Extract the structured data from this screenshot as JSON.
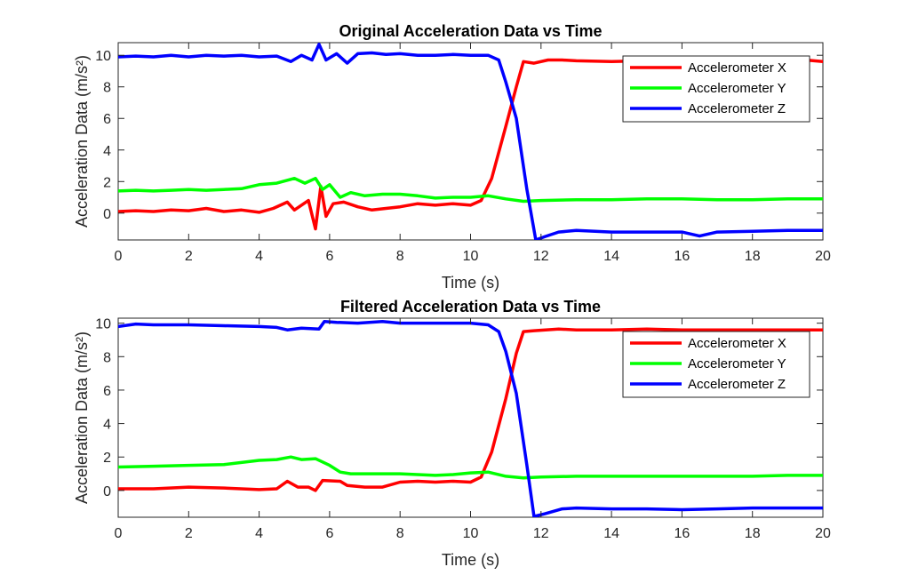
{
  "chart_data": [
    {
      "type": "line",
      "title": "Original Acceleration Data vs Time",
      "xlabel": "Time (s)",
      "ylabel": "Acceleration Data (m/s²)",
      "xlim": [
        0,
        20
      ],
      "ylim": [
        -1.7,
        10.8
      ],
      "x_ticks": [
        0,
        2,
        4,
        6,
        8,
        10,
        12,
        14,
        16,
        18,
        20
      ],
      "y_ticks": [
        0,
        2,
        4,
        6,
        8,
        10
      ],
      "legend_position": "top-right",
      "grid": false,
      "series": [
        {
          "name": "Accelerometer X",
          "color": "#ff0000",
          "points": [
            [
              0,
              0.1
            ],
            [
              0.5,
              0.15
            ],
            [
              1,
              0.1
            ],
            [
              1.5,
              0.2
            ],
            [
              2,
              0.15
            ],
            [
              2.5,
              0.3
            ],
            [
              3,
              0.1
            ],
            [
              3.5,
              0.2
            ],
            [
              4,
              0.05
            ],
            [
              4.4,
              0.3
            ],
            [
              4.8,
              0.7
            ],
            [
              5.0,
              0.2
            ],
            [
              5.4,
              0.8
            ],
            [
              5.6,
              -1.0
            ],
            [
              5.75,
              1.7
            ],
            [
              5.9,
              -0.2
            ],
            [
              6.1,
              0.6
            ],
            [
              6.4,
              0.7
            ],
            [
              6.8,
              0.4
            ],
            [
              7.2,
              0.2
            ],
            [
              7.6,
              0.3
            ],
            [
              8,
              0.4
            ],
            [
              8.5,
              0.6
            ],
            [
              9,
              0.5
            ],
            [
              9.5,
              0.6
            ],
            [
              10,
              0.5
            ],
            [
              10.3,
              0.8
            ],
            [
              10.6,
              2.2
            ],
            [
              11.0,
              5.5
            ],
            [
              11.3,
              8.0
            ],
            [
              11.5,
              9.6
            ],
            [
              11.8,
              9.5
            ],
            [
              12.2,
              9.7
            ],
            [
              12.6,
              9.7
            ],
            [
              13,
              9.65
            ],
            [
              14,
              9.6
            ],
            [
              15,
              9.65
            ],
            [
              16,
              9.6
            ],
            [
              17,
              9.65
            ],
            [
              18,
              9.65
            ],
            [
              19,
              9.6
            ],
            [
              19.5,
              9.7
            ],
            [
              20,
              9.6
            ]
          ]
        },
        {
          "name": "Accelerometer Y",
          "color": "#00ff00",
          "points": [
            [
              0,
              1.4
            ],
            [
              0.5,
              1.45
            ],
            [
              1,
              1.4
            ],
            [
              1.5,
              1.45
            ],
            [
              2,
              1.5
            ],
            [
              2.5,
              1.45
            ],
            [
              3,
              1.5
            ],
            [
              3.5,
              1.55
            ],
            [
              4,
              1.8
            ],
            [
              4.5,
              1.9
            ],
            [
              5.0,
              2.2
            ],
            [
              5.3,
              1.9
            ],
            [
              5.6,
              2.2
            ],
            [
              5.8,
              1.5
            ],
            [
              6.0,
              1.8
            ],
            [
              6.3,
              1.0
            ],
            [
              6.6,
              1.3
            ],
            [
              7.0,
              1.1
            ],
            [
              7.5,
              1.2
            ],
            [
              8,
              1.2
            ],
            [
              8.5,
              1.1
            ],
            [
              9,
              0.95
            ],
            [
              9.5,
              1.0
            ],
            [
              10,
              1.0
            ],
            [
              10.5,
              1.1
            ],
            [
              11,
              0.9
            ],
            [
              11.5,
              0.75
            ],
            [
              12,
              0.8
            ],
            [
              13,
              0.85
            ],
            [
              14,
              0.85
            ],
            [
              15,
              0.9
            ],
            [
              16,
              0.9
            ],
            [
              17,
              0.85
            ],
            [
              18,
              0.85
            ],
            [
              19,
              0.9
            ],
            [
              20,
              0.9
            ]
          ]
        },
        {
          "name": "Accelerometer Z",
          "color": "#0000ff",
          "points": [
            [
              0,
              9.9
            ],
            [
              0.5,
              9.95
            ],
            [
              1,
              9.9
            ],
            [
              1.5,
              10.0
            ],
            [
              2,
              9.9
            ],
            [
              2.5,
              10.0
            ],
            [
              3,
              9.95
            ],
            [
              3.5,
              10.0
            ],
            [
              4,
              9.9
            ],
            [
              4.5,
              9.95
            ],
            [
              4.9,
              9.6
            ],
            [
              5.2,
              10.0
            ],
            [
              5.5,
              9.7
            ],
            [
              5.7,
              10.7
            ],
            [
              5.9,
              9.7
            ],
            [
              6.2,
              10.1
            ],
            [
              6.5,
              9.5
            ],
            [
              6.8,
              10.1
            ],
            [
              7.2,
              10.15
            ],
            [
              7.6,
              10.05
            ],
            [
              8,
              10.1
            ],
            [
              8.5,
              10.0
            ],
            [
              9,
              10.0
            ],
            [
              9.5,
              10.05
            ],
            [
              10,
              10.0
            ],
            [
              10.5,
              10.0
            ],
            [
              10.8,
              9.7
            ],
            [
              11.0,
              8.3
            ],
            [
              11.3,
              6.0
            ],
            [
              11.6,
              1.5
            ],
            [
              11.85,
              -1.7
            ],
            [
              12.1,
              -1.5
            ],
            [
              12.5,
              -1.2
            ],
            [
              13,
              -1.1
            ],
            [
              14,
              -1.2
            ],
            [
              15,
              -1.2
            ],
            [
              16,
              -1.2
            ],
            [
              16.5,
              -1.45
            ],
            [
              17,
              -1.2
            ],
            [
              18,
              -1.15
            ],
            [
              19,
              -1.1
            ],
            [
              20,
              -1.1
            ]
          ]
        }
      ]
    },
    {
      "type": "line",
      "title": "Filtered Acceleration Data vs Time",
      "xlabel": "Time (s)",
      "ylabel": "Acceleration Data (m/s²)",
      "xlim": [
        0,
        20
      ],
      "ylim": [
        -1.6,
        10.3
      ],
      "x_ticks": [
        0,
        2,
        4,
        6,
        8,
        10,
        12,
        14,
        16,
        18,
        20
      ],
      "y_ticks": [
        0,
        2,
        4,
        6,
        8,
        10
      ],
      "legend_position": "top-right",
      "grid": false,
      "series": [
        {
          "name": "Accelerometer X",
          "color": "#ff0000",
          "points": [
            [
              0,
              0.1
            ],
            [
              1,
              0.1
            ],
            [
              2,
              0.2
            ],
            [
              3,
              0.15
            ],
            [
              4,
              0.05
            ],
            [
              4.5,
              0.1
            ],
            [
              4.8,
              0.55
            ],
            [
              5.1,
              0.2
            ],
            [
              5.4,
              0.2
            ],
            [
              5.6,
              0.0
            ],
            [
              5.8,
              0.6
            ],
            [
              6.3,
              0.55
            ],
            [
              6.5,
              0.3
            ],
            [
              7,
              0.2
            ],
            [
              7.5,
              0.2
            ],
            [
              8,
              0.5
            ],
            [
              8.5,
              0.55
            ],
            [
              9,
              0.5
            ],
            [
              9.5,
              0.55
            ],
            [
              10,
              0.5
            ],
            [
              10.3,
              0.8
            ],
            [
              10.6,
              2.3
            ],
            [
              11.0,
              5.5
            ],
            [
              11.3,
              8.2
            ],
            [
              11.5,
              9.5
            ],
            [
              11.8,
              9.55
            ],
            [
              12.5,
              9.65
            ],
            [
              13,
              9.6
            ],
            [
              14,
              9.6
            ],
            [
              15,
              9.65
            ],
            [
              16,
              9.6
            ],
            [
              17,
              9.6
            ],
            [
              18,
              9.6
            ],
            [
              19,
              9.6
            ],
            [
              20,
              9.6
            ]
          ]
        },
        {
          "name": "Accelerometer Y",
          "color": "#00ff00",
          "points": [
            [
              0,
              1.4
            ],
            [
              1,
              1.45
            ],
            [
              2,
              1.5
            ],
            [
              3,
              1.55
            ],
            [
              4,
              1.8
            ],
            [
              4.5,
              1.85
            ],
            [
              4.9,
              2.0
            ],
            [
              5.2,
              1.85
            ],
            [
              5.6,
              1.9
            ],
            [
              6.0,
              1.5
            ],
            [
              6.3,
              1.1
            ],
            [
              6.6,
              1.0
            ],
            [
              7.0,
              1.0
            ],
            [
              7.5,
              1.0
            ],
            [
              8,
              1.0
            ],
            [
              8.5,
              0.95
            ],
            [
              9,
              0.9
            ],
            [
              9.5,
              0.95
            ],
            [
              10,
              1.05
            ],
            [
              10.5,
              1.1
            ],
            [
              11,
              0.85
            ],
            [
              11.5,
              0.75
            ],
            [
              12,
              0.8
            ],
            [
              13,
              0.85
            ],
            [
              14,
              0.85
            ],
            [
              15,
              0.85
            ],
            [
              16,
              0.85
            ],
            [
              17,
              0.85
            ],
            [
              18,
              0.85
            ],
            [
              19,
              0.9
            ],
            [
              20,
              0.9
            ]
          ]
        },
        {
          "name": "Accelerometer Z",
          "color": "#0000ff",
          "points": [
            [
              0,
              9.8
            ],
            [
              0.5,
              9.95
            ],
            [
              1,
              9.9
            ],
            [
              2,
              9.9
            ],
            [
              3,
              9.85
            ],
            [
              4,
              9.8
            ],
            [
              4.5,
              9.75
            ],
            [
              4.8,
              9.6
            ],
            [
              5.2,
              9.7
            ],
            [
              5.7,
              9.65
            ],
            [
              5.85,
              10.1
            ],
            [
              6.2,
              10.05
            ],
            [
              6.8,
              10.0
            ],
            [
              7.5,
              10.1
            ],
            [
              8,
              10.0
            ],
            [
              9,
              10.0
            ],
            [
              10,
              10.0
            ],
            [
              10.5,
              9.9
            ],
            [
              10.8,
              9.5
            ],
            [
              11.0,
              8.3
            ],
            [
              11.3,
              5.8
            ],
            [
              11.6,
              1.5
            ],
            [
              11.8,
              -1.55
            ],
            [
              12.1,
              -1.4
            ],
            [
              12.6,
              -1.1
            ],
            [
              13,
              -1.05
            ],
            [
              14,
              -1.1
            ],
            [
              15,
              -1.1
            ],
            [
              16,
              -1.15
            ],
            [
              17,
              -1.1
            ],
            [
              18,
              -1.05
            ],
            [
              19,
              -1.05
            ],
            [
              20,
              -1.05
            ]
          ]
        }
      ]
    }
  ]
}
